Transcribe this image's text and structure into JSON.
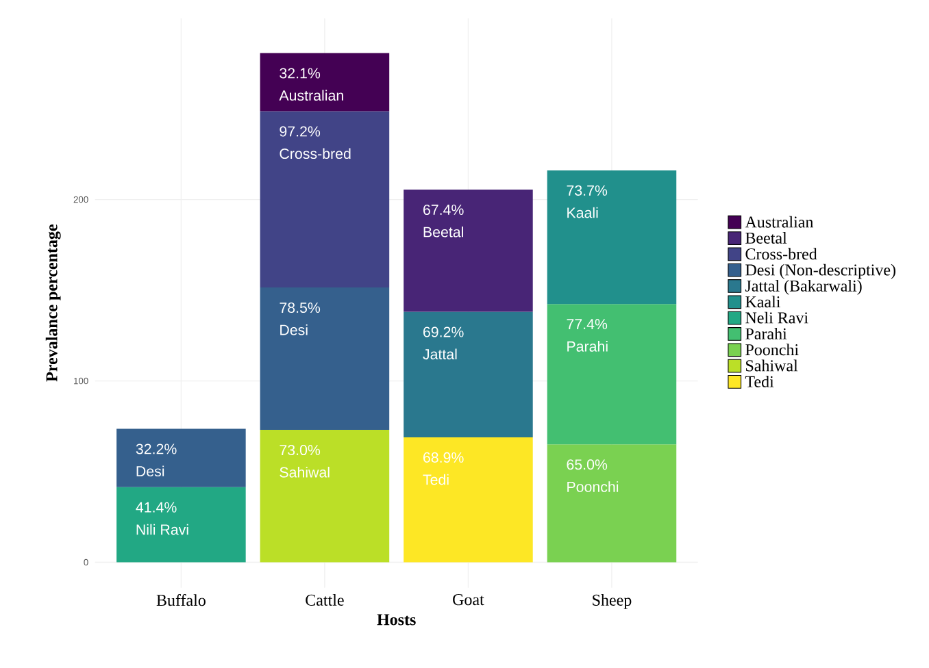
{
  "chart_data": {
    "type": "bar",
    "stacked": true,
    "xlabel": "Hosts",
    "ylabel": "Prevalance percentage",
    "categories": [
      "Buffalo",
      "Cattle",
      "Goat",
      "Sheep"
    ],
    "ylim": [
      -14,
      300
    ],
    "yticks": [
      0,
      100,
      200
    ],
    "grid": true,
    "legend": "right",
    "series": [
      {
        "name": "Tedi",
        "color": "#FDE725",
        "values": [
          null,
          null,
          68.9,
          null
        ],
        "value_labels": [
          null,
          null,
          "68.9%",
          null
        ]
      },
      {
        "name": "Sahiwal",
        "color": "#BBDF27",
        "values": [
          null,
          73.0,
          null,
          null
        ],
        "value_labels": [
          null,
          "73.0%",
          null,
          null
        ]
      },
      {
        "name": "Poonchi",
        "color": "#7AD151",
        "values": [
          null,
          null,
          null,
          65.0
        ],
        "value_labels": [
          null,
          null,
          null,
          "65.0%"
        ]
      },
      {
        "name": "Parahi",
        "color": "#43BF71",
        "values": [
          null,
          null,
          null,
          77.4
        ],
        "value_labels": [
          null,
          null,
          null,
          "77.4%"
        ]
      },
      {
        "name": "Neli Ravi",
        "color": "#22A884",
        "values": [
          41.4,
          null,
          null,
          null
        ],
        "value_labels": [
          "41.4%",
          null,
          null,
          null
        ]
      },
      {
        "name": "Kaali",
        "color": "#21908C",
        "values": [
          null,
          null,
          null,
          73.7
        ],
        "value_labels": [
          null,
          null,
          null,
          "73.7%"
        ]
      },
      {
        "name": "Jattal (Bakarwali)",
        "color": "#2A788E",
        "values": [
          null,
          null,
          69.2,
          null
        ],
        "value_labels": [
          null,
          null,
          "69.2%",
          null
        ]
      },
      {
        "name": "Desi (Non-descriptive)",
        "color": "#35608D",
        "values": [
          32.2,
          78.5,
          null,
          null
        ],
        "value_labels": [
          "32.2%",
          "78.5%",
          null,
          null
        ]
      },
      {
        "name": "Cross-bred",
        "color": "#414487",
        "values": [
          null,
          97.2,
          null,
          null
        ],
        "value_labels": [
          null,
          "97.2%",
          null,
          null
        ]
      },
      {
        "name": "Beetal",
        "color": "#482576",
        "values": [
          null,
          null,
          67.4,
          null
        ],
        "value_labels": [
          null,
          null,
          "67.4%",
          null
        ]
      },
      {
        "name": "Australian",
        "color": "#440154",
        "values": [
          null,
          32.1,
          null,
          null
        ],
        "value_labels": [
          null,
          "32.1%",
          null,
          null
        ]
      }
    ],
    "annotations": [
      "Tedi",
      "Sahiwal",
      "Poonchi",
      "Parahi",
      "Nili Ravi",
      "Kaali",
      "Jattal",
      "Desi",
      "Desi",
      "Cross-bred",
      "Beetal",
      "Australian"
    ]
  }
}
